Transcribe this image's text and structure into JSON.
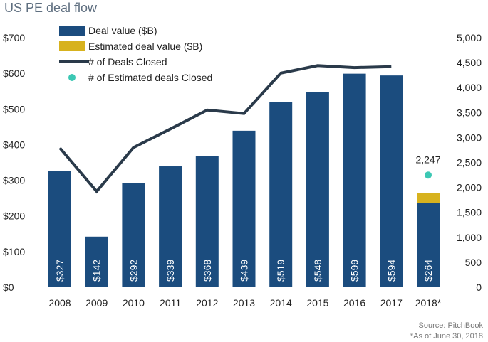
{
  "title": "US PE deal flow",
  "source_note": "Source: PitchBook",
  "asof_note": "*As of June 30, 2018",
  "colors": {
    "bar": "#1b4c7e",
    "estimate": "#d7b21e",
    "line": "#2a3a4a",
    "dot": "#3cc8b4"
  },
  "chart_data": {
    "type": "bar",
    "title": "US PE deal flow",
    "categories": [
      "2008",
      "2009",
      "2010",
      "2011",
      "2012",
      "2013",
      "2014",
      "2015",
      "2016",
      "2017",
      "2018*"
    ],
    "series": [
      {
        "name": "Deal value ($B)",
        "type": "bar",
        "axis": "left",
        "values": [
          327,
          142,
          292,
          339,
          368,
          439,
          519,
          548,
          599,
          594,
          236
        ]
      },
      {
        "name": "Estimated deal value ($B)",
        "type": "bar-stacked",
        "axis": "left",
        "values": [
          0,
          0,
          0,
          0,
          0,
          0,
          0,
          0,
          0,
          0,
          28
        ]
      },
      {
        "name": "# of Deals Closed",
        "type": "line",
        "axis": "right",
        "values": [
          2790,
          1920,
          2800,
          3170,
          3550,
          3480,
          4290,
          4440,
          4400,
          4420,
          null
        ]
      },
      {
        "name": "# of Estimated deals Closed",
        "type": "scatter",
        "axis": "right",
        "values": [
          null,
          null,
          null,
          null,
          null,
          null,
          null,
          null,
          null,
          null,
          2247
        ]
      }
    ],
    "bar_labels": [
      "$327",
      "$142",
      "$292",
      "$339",
      "$368",
      "$439",
      "$519",
      "$548",
      "$599",
      "$594",
      "$264"
    ],
    "point_labels": [
      {
        "index": 10,
        "text": "2,247"
      }
    ],
    "y_left": {
      "ylim": [
        0,
        700
      ],
      "ticks": [
        0,
        100,
        200,
        300,
        400,
        500,
        600,
        700
      ],
      "tick_labels": [
        "$0",
        "$100",
        "$200",
        "$300",
        "$400",
        "$500",
        "$600",
        "$700"
      ]
    },
    "y_right": {
      "ylim": [
        0,
        5000
      ],
      "ticks": [
        0,
        500,
        1000,
        1500,
        2000,
        2500,
        3000,
        3500,
        4000,
        4500,
        5000
      ],
      "tick_labels": [
        "0",
        "500",
        "1,000",
        "1,500",
        "2,000",
        "2,500",
        "3,000",
        "3,500",
        "4,000",
        "4,500",
        "5,000"
      ]
    },
    "xlabel": "",
    "ylabel": "",
    "grid": false,
    "legend_position": "top-left",
    "legend": [
      "Deal value ($B)",
      "Estimated deal value ($B)",
      "# of Deals Closed",
      "# of Estimated deals Closed"
    ]
  }
}
